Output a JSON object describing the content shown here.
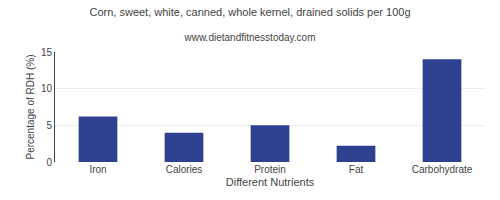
{
  "chart_data": {
    "type": "bar",
    "title": "Corn, sweet, white, canned, whole kernel, drained solids per 100g",
    "subtitle": "www.dietandfitnesstoday.com",
    "categories": [
      "Iron",
      "Calories",
      "Protein",
      "Fat",
      "Carbohydrate"
    ],
    "values": [
      6.2,
      4.0,
      5.0,
      2.2,
      14.0
    ],
    "color": "#2e4090",
    "xlabel": "Different Nutrients",
    "ylabel": "Percentage of RDH (%)",
    "ylim": [
      0,
      15
    ],
    "yticks": [
      0,
      5,
      10,
      15
    ],
    "grid": true
  }
}
